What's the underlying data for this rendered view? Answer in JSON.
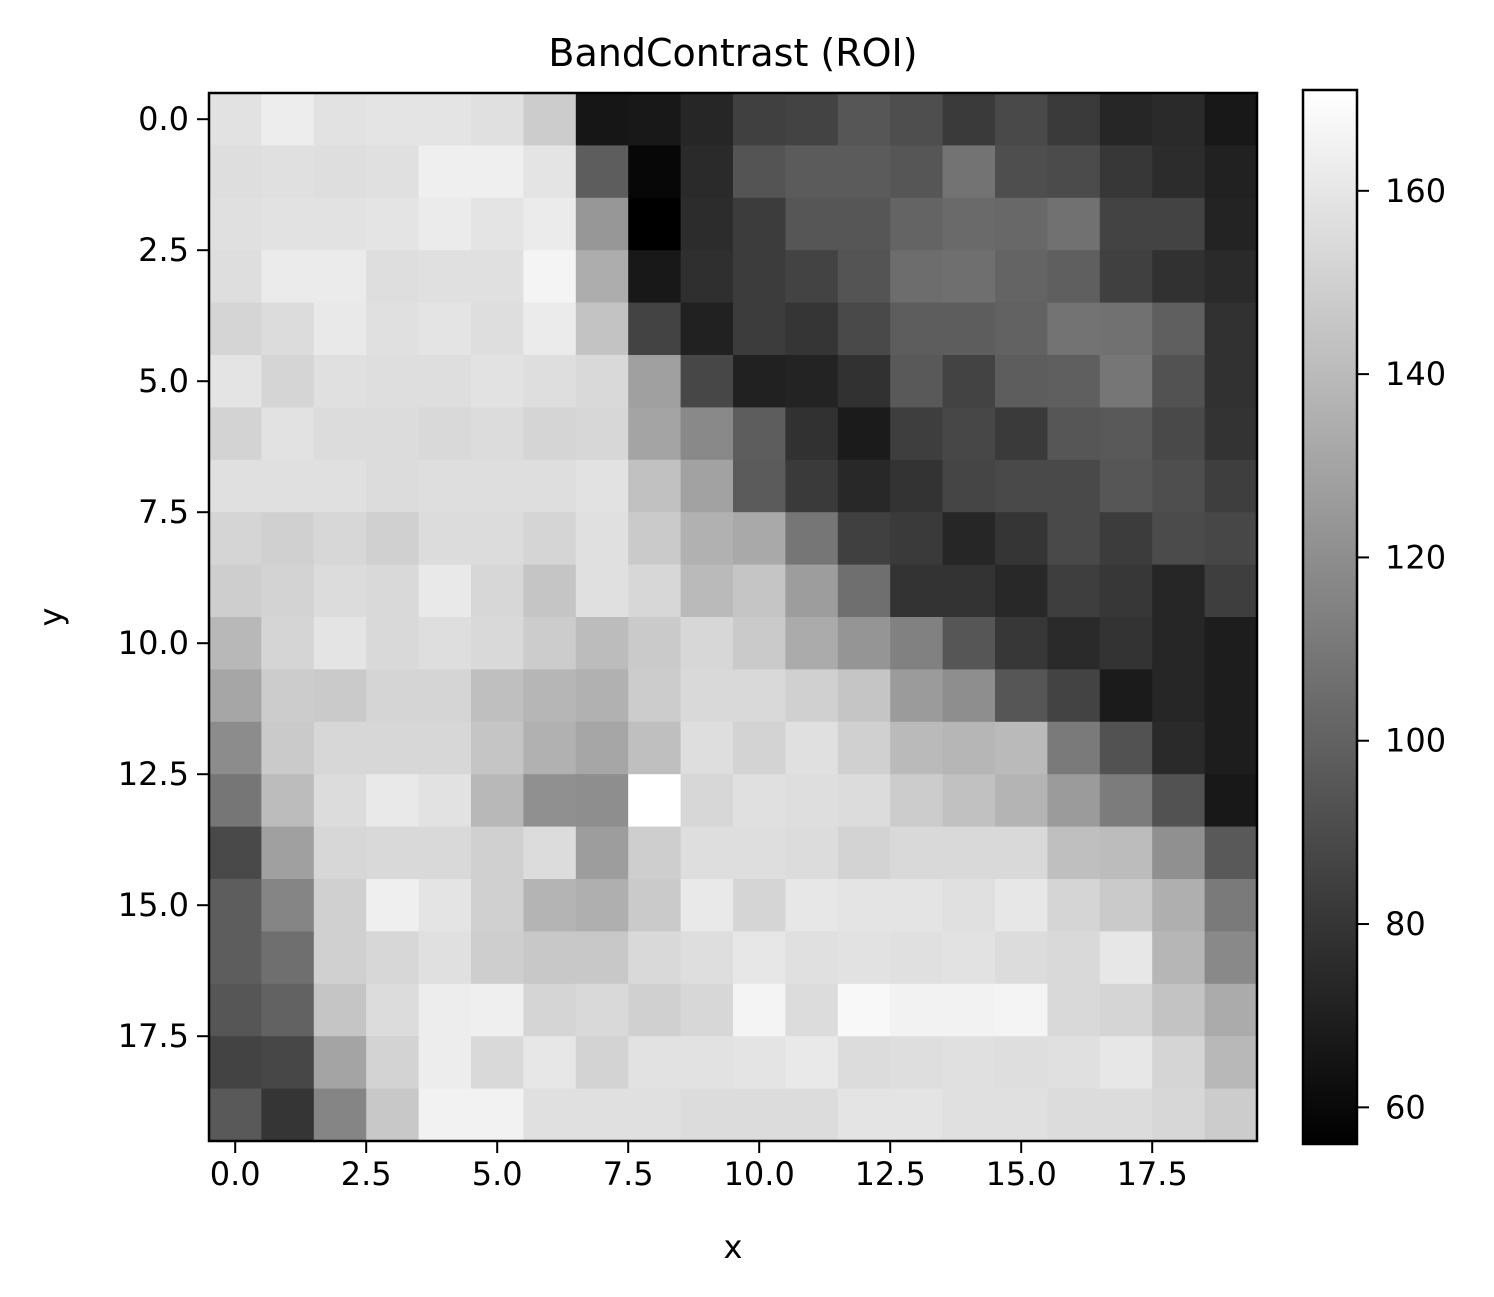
{
  "chart_data": {
    "type": "heatmap",
    "title": "BandContrast (ROI)",
    "xlabel": "x",
    "ylabel": "y",
    "colormap": "gray",
    "colorbar_range": [
      56,
      171
    ],
    "x_ticks": [
      "0.0",
      "2.5",
      "5.0",
      "7.5",
      "10.0",
      "12.5",
      "15.0",
      "17.5"
    ],
    "x_tick_values": [
      0,
      2.5,
      5,
      7.5,
      10,
      12.5,
      15,
      17.5
    ],
    "y_ticks": [
      "0.0",
      "2.5",
      "5.0",
      "7.5",
      "10.0",
      "12.5",
      "15.0",
      "17.5"
    ],
    "y_tick_values": [
      0,
      2.5,
      5,
      7.5,
      10,
      12.5,
      15,
      17.5
    ],
    "colorbar_ticks": [
      "60",
      "80",
      "100",
      "120",
      "140",
      "160"
    ],
    "colorbar_tick_values": [
      60,
      80,
      100,
      120,
      140,
      160
    ],
    "grid": false,
    "values": [
      [
        158,
        163,
        158,
        159,
        159,
        157,
        148,
        66,
        67,
        73,
        85,
        86,
        95,
        91,
        82,
        89,
        82,
        73,
        75,
        67
      ],
      [
        156,
        157,
        156,
        157,
        164,
        164,
        159,
        98,
        59,
        75,
        94,
        97,
        97,
        95,
        108,
        91,
        90,
        81,
        76,
        71
      ],
      [
        157,
        158,
        158,
        159,
        162,
        159,
        162,
        124,
        56,
        76,
        83,
        95,
        95,
        101,
        104,
        103,
        107,
        86,
        86,
        72
      ],
      [
        156,
        162,
        162,
        156,
        157,
        157,
        166,
        134,
        67,
        77,
        83,
        86,
        94,
        105,
        106,
        101,
        99,
        85,
        78,
        75
      ],
      [
        152,
        155,
        161,
        157,
        159,
        156,
        162,
        144,
        86,
        71,
        83,
        80,
        89,
        98,
        98,
        100,
        108,
        107,
        99,
        78
      ],
      [
        159,
        152,
        157,
        156,
        156,
        158,
        156,
        154,
        128,
        88,
        71,
        72,
        78,
        96,
        86,
        98,
        99,
        109,
        93,
        78
      ],
      [
        151,
        158,
        155,
        155,
        154,
        155,
        152,
        153,
        130,
        118,
        98,
        78,
        68,
        84,
        88,
        82,
        95,
        96,
        89,
        79
      ],
      [
        157,
        157,
        157,
        155,
        156,
        156,
        156,
        158,
        143,
        129,
        97,
        82,
        74,
        79,
        87,
        89,
        89,
        95,
        91,
        84
      ],
      [
        152,
        150,
        153,
        150,
        155,
        155,
        152,
        157,
        147,
        136,
        132,
        109,
        85,
        82,
        73,
        80,
        89,
        83,
        90,
        88
      ],
      [
        149,
        151,
        155,
        154,
        161,
        153,
        145,
        157,
        153,
        140,
        145,
        127,
        106,
        79,
        79,
        74,
        84,
        81,
        73,
        84
      ],
      [
        139,
        152,
        159,
        154,
        156,
        154,
        148,
        141,
        147,
        153,
        147,
        133,
        123,
        114,
        95,
        81,
        75,
        79,
        73,
        69
      ],
      [
        131,
        148,
        147,
        152,
        152,
        142,
        138,
        136,
        148,
        154,
        154,
        150,
        145,
        126,
        120,
        95,
        86,
        68,
        73,
        69
      ],
      [
        119,
        147,
        153,
        153,
        153,
        145,
        136,
        131,
        142,
        156,
        151,
        157,
        150,
        140,
        138,
        140,
        111,
        93,
        75,
        69
      ],
      [
        109,
        141,
        155,
        161,
        158,
        139,
        121,
        120,
        171,
        153,
        157,
        156,
        155,
        148,
        143,
        137,
        126,
        112,
        93,
        67
      ],
      [
        89,
        128,
        153,
        154,
        154,
        150,
        155,
        127,
        149,
        156,
        156,
        155,
        151,
        154,
        154,
        154,
        142,
        141,
        121,
        96
      ],
      [
        98,
        116,
        150,
        164,
        159,
        150,
        137,
        135,
        147,
        161,
        152,
        160,
        159,
        159,
        157,
        160,
        152,
        147,
        135,
        111
      ],
      [
        98,
        106,
        150,
        153,
        157,
        149,
        146,
        146,
        154,
        156,
        160,
        157,
        158,
        157,
        158,
        155,
        154,
        160,
        138,
        118
      ],
      [
        95,
        100,
        145,
        155,
        163,
        164,
        152,
        154,
        150,
        153,
        166,
        155,
        168,
        165,
        165,
        166,
        154,
        152,
        144,
        133
      ],
      [
        86,
        88,
        130,
        151,
        163,
        154,
        160,
        151,
        158,
        158,
        159,
        161,
        155,
        156,
        157,
        156,
        157,
        160,
        152,
        139
      ],
      [
        96,
        80,
        116,
        146,
        165,
        165,
        157,
        157,
        157,
        155,
        155,
        155,
        159,
        159,
        157,
        157,
        155,
        155,
        153,
        148
      ]
    ]
  }
}
